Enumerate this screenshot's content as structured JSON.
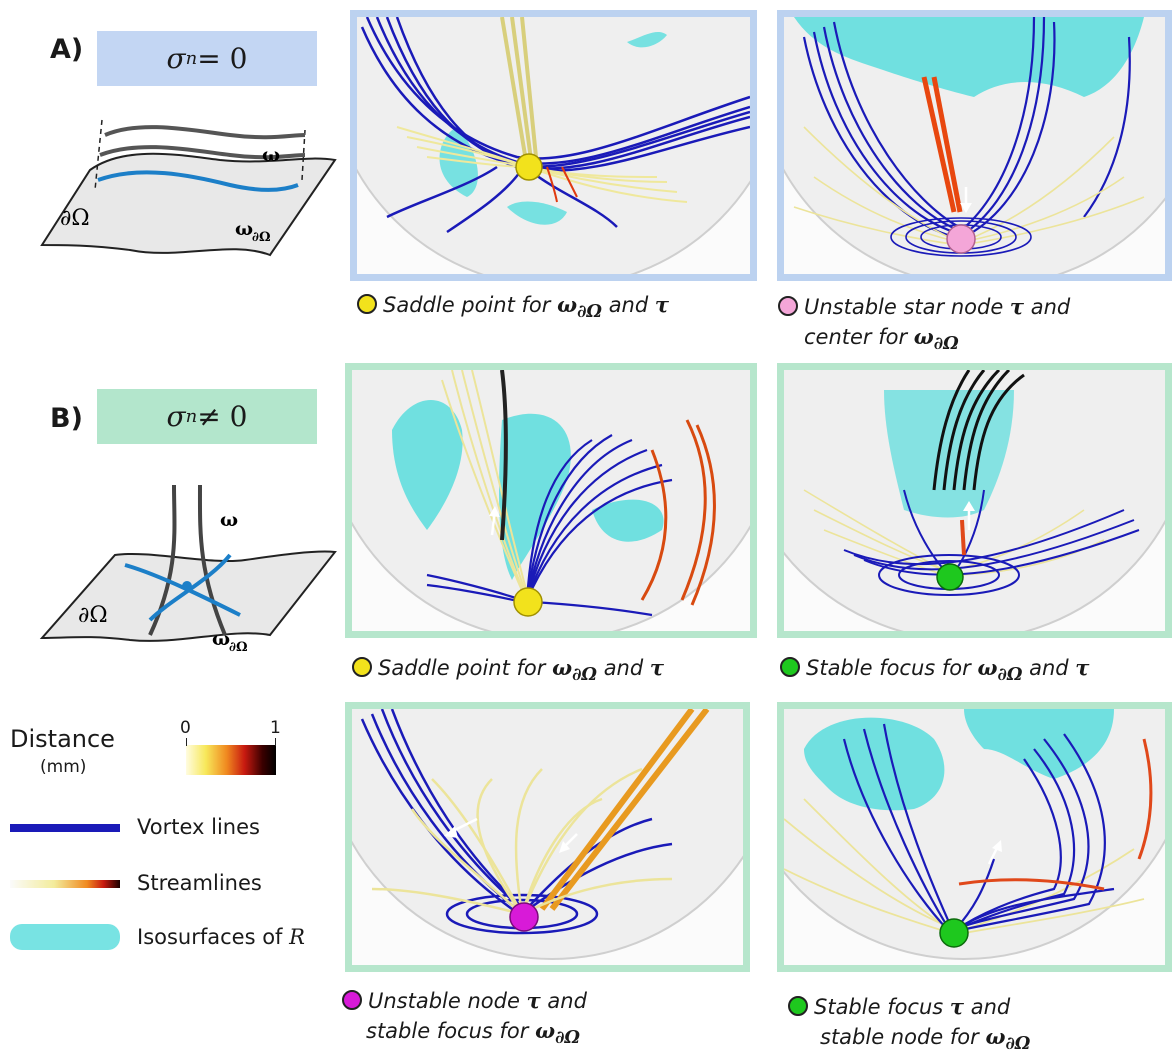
{
  "section_a": {
    "label": "A)",
    "sigma_lhs": "σ",
    "sigma_sub": "n",
    "sigma_rhs": " = 0"
  },
  "section_b": {
    "label": "B)",
    "sigma_lhs": "σ",
    "sigma_sub": "n",
    "sigma_rhs": " ≠ 0"
  },
  "schematic_a": {
    "omega": "ω",
    "boundary": "∂Ω",
    "omega_boundary": "ω",
    "omega_boundary_sub": "∂Ω"
  },
  "schematic_b": {
    "omega": "ω",
    "boundary": "∂Ω",
    "omega_boundary": "ω",
    "omega_boundary_sub": "∂Ω"
  },
  "captions": {
    "a1": {
      "text1": "Saddle point for ",
      "math": "ω",
      "sub": "∂Ω",
      "text2": " and ",
      "tau": "τ",
      "dot_color": "#f2e21c"
    },
    "a2": {
      "text1": "Unstable star node ",
      "tau": "τ",
      "text2": " and",
      "line2": "center for ",
      "math": "ω",
      "sub": "∂Ω",
      "dot_color": "#f4a6d8"
    },
    "b1": {
      "text1": "Saddle point for ",
      "math": "ω",
      "sub": "∂Ω",
      "text2": " and ",
      "tau": "τ",
      "dot_color": "#f2e21c"
    },
    "b2": {
      "text1": "Stable focus for  ",
      "math": "ω",
      "sub": "∂Ω",
      "text2": " and ",
      "tau": "τ",
      "dot_color": "#1ec81e"
    },
    "c1": {
      "text1": "Unstable node ",
      "tau": "τ",
      "text2": " and",
      "line2": "stable focus for ",
      "math": "ω",
      "sub": "∂Ω",
      "dot_color": "#d81ad8"
    },
    "c2": {
      "text1": "Stable focus ",
      "tau": "τ",
      "text2": " and",
      "line2": "stable node for ",
      "math": "ω",
      "sub": "∂Ω",
      "dot_color": "#1ec81e"
    }
  },
  "legend": {
    "distance_title": "Distance",
    "distance_unit": "(mm)",
    "cbar_min": "0",
    "cbar_max": "1",
    "vortex_lines": "Vortex lines",
    "streamlines": "Streamlines",
    "isosurfaces": "Isosurfaces of ",
    "isosurfaces_var": "R"
  },
  "colors": {
    "blue_frame": "#bcd2f0",
    "green_frame": "#b6e6cc",
    "vortex": "#1a1ab8",
    "iso": "#62dede",
    "stream_light": "#f0eca0"
  }
}
